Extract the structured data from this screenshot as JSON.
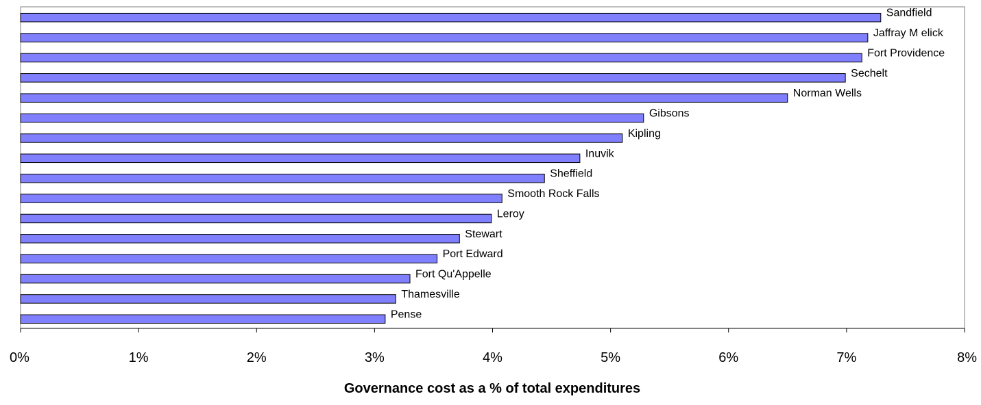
{
  "chart_data": {
    "type": "bar",
    "orientation": "horizontal",
    "title": "",
    "xlabel": "Governance cost as a % of total expenditures",
    "ylabel": "",
    "xlim": [
      0,
      0.08
    ],
    "x_ticks": [
      0,
      0.01,
      0.02,
      0.03,
      0.04,
      0.05,
      0.06,
      0.07,
      0.08
    ],
    "x_tick_labels": [
      "0%",
      "1%",
      "2%",
      "3%",
      "4%",
      "5%",
      "6%",
      "7%",
      "8%"
    ],
    "grid": false,
    "legend": "none",
    "bar_color": "#8080ff",
    "bar_edge_color": "#000000",
    "categories": [
      "Sandfield",
      "Jaffray M elick",
      "Fort Providence",
      "Sechelt",
      "Norman Wells",
      "Gibsons",
      "Kipling",
      "Inuvik",
      "Sheffield",
      "Smooth Rock Falls",
      "Leroy",
      "Stewart",
      "Port Edward",
      "Fort Qu'Appelle",
      "Thamesville",
      "Pense"
    ],
    "values": [
      0.0729,
      0.0718,
      0.0713,
      0.0699,
      0.065,
      0.0528,
      0.051,
      0.0474,
      0.0444,
      0.0408,
      0.0399,
      0.0372,
      0.0353,
      0.033,
      0.0318,
      0.0309
    ]
  }
}
